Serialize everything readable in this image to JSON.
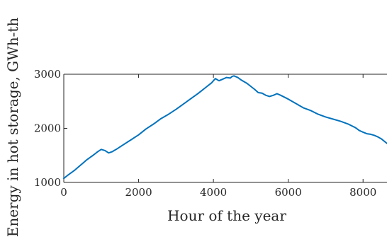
{
  "chart_data": {
    "type": "line",
    "xlabel": "Hour of the year",
    "ylabel": "Energy in hot storage, GWh-th",
    "xlim": [
      0,
      8640
    ],
    "ylim": [
      1000,
      3000
    ],
    "xticks": [
      0,
      2000,
      4000,
      6000,
      8000
    ],
    "yticks": [
      1000,
      2000,
      3000
    ],
    "xtick_labels": [
      "0",
      "2000",
      "4000",
      "6000",
      "8000"
    ],
    "ytick_labels": [
      "1000",
      "2000",
      "3000"
    ],
    "grid": false,
    "line_color": "#0072BD",
    "series": [
      {
        "x": [
          0,
          100,
          200,
          300,
          400,
          500,
          600,
          700,
          800,
          900,
          1000,
          1100,
          1200,
          1300,
          1400,
          1600,
          1800,
          2000,
          2200,
          2400,
          2600,
          2800,
          3000,
          3200,
          3400,
          3600,
          3800,
          3950,
          4050,
          4150,
          4250,
          4350,
          4450,
          4500,
          4550,
          4650,
          4750,
          4900,
          5100,
          5200,
          5300,
          5400,
          5500,
          5600,
          5700,
          5800,
          6000,
          6200,
          6400,
          6600,
          6800,
          7000,
          7200,
          7400,
          7600,
          7800,
          7900,
          8000,
          8100,
          8200,
          8300,
          8400,
          8500,
          8640
        ],
        "y": [
          1075,
          1130,
          1180,
          1230,
          1290,
          1350,
          1410,
          1460,
          1510,
          1565,
          1610,
          1590,
          1545,
          1570,
          1610,
          1700,
          1790,
          1880,
          1990,
          2080,
          2180,
          2260,
          2350,
          2450,
          2550,
          2650,
          2760,
          2840,
          2920,
          2880,
          2910,
          2940,
          2930,
          2960,
          2970,
          2940,
          2890,
          2830,
          2720,
          2660,
          2650,
          2610,
          2590,
          2610,
          2640,
          2610,
          2540,
          2460,
          2380,
          2330,
          2260,
          2210,
          2170,
          2130,
          2080,
          2010,
          1960,
          1930,
          1900,
          1890,
          1870,
          1840,
          1800,
          1720
        ]
      }
    ]
  }
}
